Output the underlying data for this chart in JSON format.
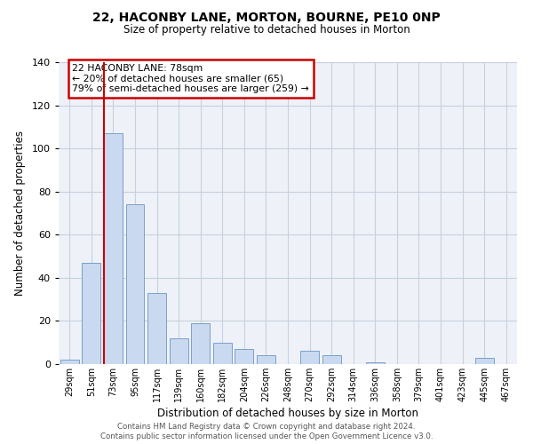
{
  "title": "22, HACONBY LANE, MORTON, BOURNE, PE10 0NP",
  "subtitle": "Size of property relative to detached houses in Morton",
  "xlabel": "Distribution of detached houses by size in Morton",
  "ylabel": "Number of detached properties",
  "bar_color": "#c9d9f0",
  "bar_edge_color": "#7a9fcb",
  "background_color": "#ffffff",
  "axes_bg_color": "#eef2f8",
  "grid_color": "#c8d0de",
  "categories": [
    "29sqm",
    "51sqm",
    "73sqm",
    "95sqm",
    "117sqm",
    "139sqm",
    "160sqm",
    "182sqm",
    "204sqm",
    "226sqm",
    "248sqm",
    "270sqm",
    "292sqm",
    "314sqm",
    "336sqm",
    "358sqm",
    "379sqm",
    "401sqm",
    "423sqm",
    "445sqm",
    "467sqm"
  ],
  "values": [
    2,
    47,
    107,
    74,
    33,
    12,
    19,
    10,
    7,
    4,
    0,
    6,
    4,
    0,
    1,
    0,
    0,
    0,
    0,
    3,
    0
  ],
  "ylim": [
    0,
    140
  ],
  "yticks": [
    0,
    20,
    40,
    60,
    80,
    100,
    120,
    140
  ],
  "red_line_index": 2,
  "annotation_text": "22 HACONBY LANE: 78sqm\n← 20% of detached houses are smaller (65)\n79% of semi-detached houses are larger (259) →",
  "annotation_box_facecolor": "#ffffff",
  "annotation_box_edgecolor": "#cc0000",
  "red_line_color": "#cc0000",
  "footer_line1": "Contains HM Land Registry data © Crown copyright and database right 2024.",
  "footer_line2": "Contains public sector information licensed under the Open Government Licence v3.0."
}
